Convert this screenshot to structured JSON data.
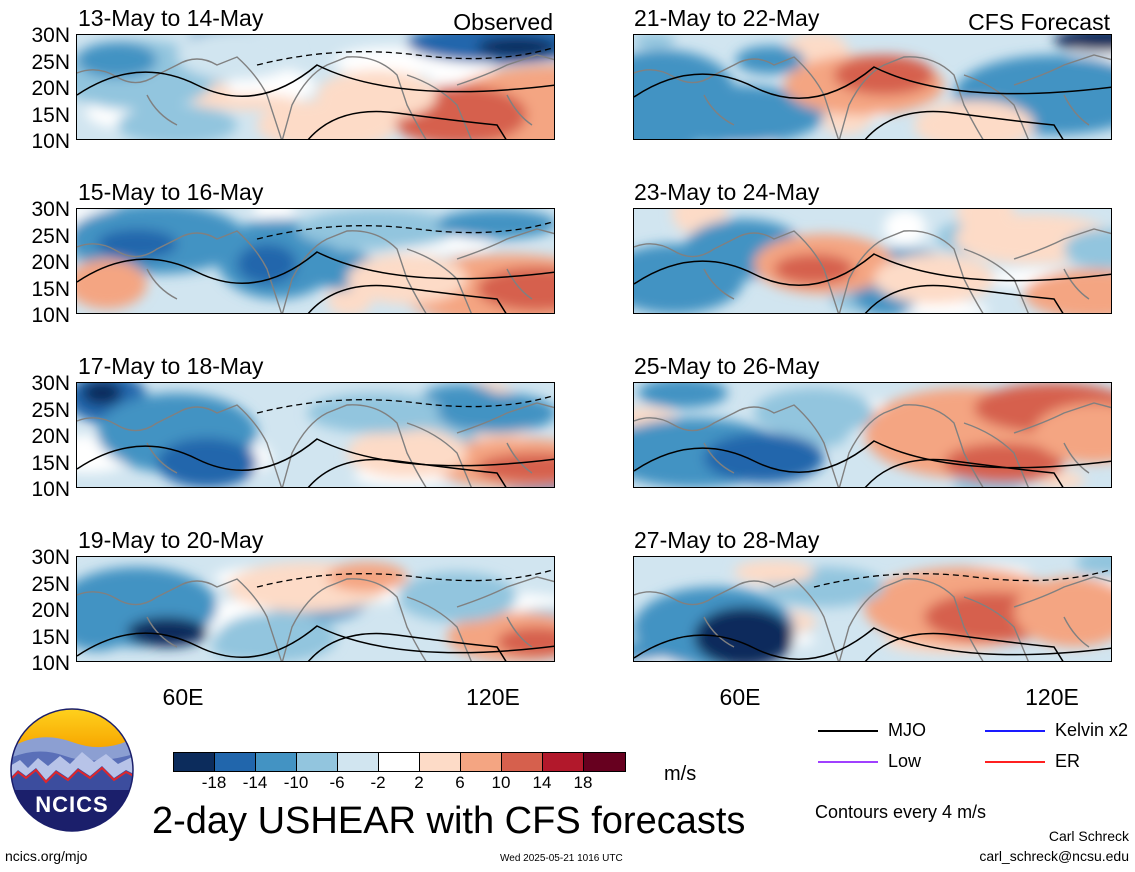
{
  "header": {
    "observed_label": "Observed",
    "forecast_label": "CFS Forecast"
  },
  "latitude_labels": [
    "30N",
    "25N",
    "20N",
    "15N",
    "10N"
  ],
  "longitude_labels": [
    "60E",
    "120E"
  ],
  "panels": [
    {
      "title": "13-May to 14-May",
      "column": "observed"
    },
    {
      "title": "15-May to 16-May",
      "column": "observed"
    },
    {
      "title": "17-May to 18-May",
      "column": "observed"
    },
    {
      "title": "19-May to 20-May",
      "column": "observed"
    },
    {
      "title": "21-May to 22-May",
      "column": "forecast"
    },
    {
      "title": "23-May to 24-May",
      "column": "forecast"
    },
    {
      "title": "25-May to 26-May",
      "column": "forecast"
    },
    {
      "title": "27-May to 28-May",
      "column": "forecast"
    }
  ],
  "colorbar": {
    "labels": [
      "-18",
      "-14",
      "-10",
      "-6",
      "-2",
      "2",
      "6",
      "10",
      "14",
      "18"
    ],
    "colors": [
      "#0c2c5c",
      "#2166ac",
      "#4393c3",
      "#92c5de",
      "#d1e5f0",
      "#ffffff",
      "#fddbc7",
      "#f4a582",
      "#d6604d",
      "#b2182b",
      "#67001f"
    ],
    "units": "m/s"
  },
  "legend": {
    "items": [
      {
        "label": "MJO",
        "color": "#000000"
      },
      {
        "label": "Kelvin x2",
        "color": "#1a1aff"
      },
      {
        "label": "Low",
        "color": "#a040ff"
      },
      {
        "label": "ER",
        "color": "#ff2020"
      }
    ],
    "note": "Contours every 4 m/s"
  },
  "logo": {
    "text": "NCICS"
  },
  "main_title": "2-day USHEAR with CFS forecasts",
  "footer": {
    "url": "ncics.org/mjo",
    "timestamp": "Wed 2025-05-21 1016 UTC",
    "author": "Carl Schreck",
    "email": "carl_schreck@ncsu.edu"
  }
}
